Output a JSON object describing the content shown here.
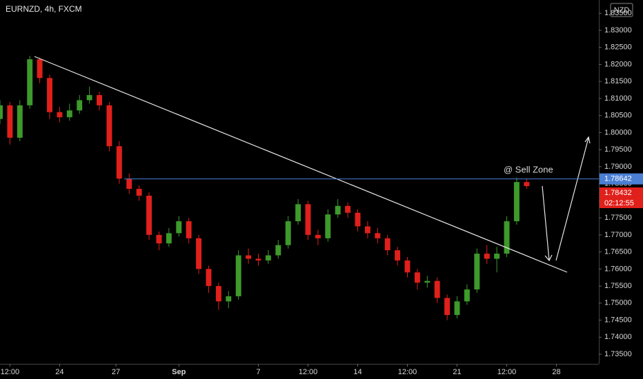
{
  "chart_data": {
    "type": "candlestick",
    "title": "EURNZD, 4h, FXCM",
    "currency": "NZD",
    "annotation": "@ Sell Zone",
    "countdown": "02:12:55",
    "up_color": "#3d9a2b",
    "down_color": "#e0201b",
    "level": 1.78642,
    "level_color": "#4a7fd4",
    "last_price": 1.78432,
    "x": [
      0,
      3,
      6,
      9,
      12,
      15,
      18,
      21,
      24,
      27,
      30,
      33,
      36,
      39,
      42,
      45,
      48,
      51,
      54,
      57,
      60,
      63,
      66,
      69,
      72,
      75,
      78,
      81,
      84,
      87,
      90,
      93,
      96,
      99,
      102,
      105,
      108,
      111,
      114,
      117,
      120,
      123,
      126,
      129,
      132,
      135,
      138,
      141,
      144,
      147,
      150,
      153,
      156,
      159
    ],
    "open": [
      1.804,
      1.808,
      1.7985,
      1.808,
      1.8215,
      1.816,
      1.806,
      1.8045,
      1.8065,
      1.8095,
      1.811,
      1.808,
      1.796,
      1.7865,
      1.7835,
      1.7815,
      1.77,
      1.7675,
      1.7705,
      1.774,
      1.769,
      1.76,
      1.755,
      1.7505,
      1.752,
      1.764,
      1.763,
      1.7625,
      1.764,
      1.767,
      1.774,
      1.779,
      1.77,
      1.769,
      1.776,
      1.7785,
      1.7765,
      1.7725,
      1.7705,
      1.769,
      1.7655,
      1.7625,
      1.759,
      1.756,
      1.7565,
      1.7515,
      1.7465,
      1.7505,
      1.754,
      1.7645,
      1.763,
      1.7645,
      1.774,
      1.7855
    ],
    "high": [
      1.8095,
      1.809,
      1.8095,
      1.8225,
      1.822,
      1.817,
      1.8075,
      1.8085,
      1.811,
      1.8135,
      1.812,
      1.809,
      1.7975,
      1.788,
      1.7845,
      1.7825,
      1.771,
      1.772,
      1.7755,
      1.775,
      1.77,
      1.761,
      1.756,
      1.7535,
      1.7655,
      1.766,
      1.7645,
      1.7655,
      1.7685,
      1.7755,
      1.7805,
      1.78,
      1.7715,
      1.7775,
      1.7805,
      1.7795,
      1.7775,
      1.774,
      1.772,
      1.77,
      1.7665,
      1.7635,
      1.76,
      1.758,
      1.7575,
      1.7525,
      1.752,
      1.7555,
      1.766,
      1.767,
      1.7665,
      1.7755,
      1.7868,
      1.7866
    ],
    "low": [
      1.8025,
      1.7965,
      1.7975,
      1.807,
      1.8145,
      1.804,
      1.803,
      1.8035,
      1.8055,
      1.8085,
      1.8065,
      1.7945,
      1.785,
      1.782,
      1.78,
      1.7685,
      1.7655,
      1.7665,
      1.7695,
      1.7675,
      1.7585,
      1.753,
      1.748,
      1.7485,
      1.751,
      1.7615,
      1.761,
      1.7615,
      1.763,
      1.766,
      1.773,
      1.7685,
      1.767,
      1.768,
      1.775,
      1.775,
      1.771,
      1.769,
      1.7675,
      1.764,
      1.761,
      1.7575,
      1.754,
      1.7545,
      1.75,
      1.745,
      1.7455,
      1.7495,
      1.753,
      1.7615,
      1.759,
      1.7635,
      1.773,
      1.7835
    ],
    "close": [
      1.808,
      1.7985,
      1.808,
      1.8215,
      1.816,
      1.806,
      1.8045,
      1.8065,
      1.8095,
      1.811,
      1.808,
      1.796,
      1.7865,
      1.7835,
      1.7815,
      1.77,
      1.7675,
      1.7705,
      1.774,
      1.769,
      1.76,
      1.755,
      1.7505,
      1.752,
      1.764,
      1.763,
      1.7625,
      1.764,
      1.767,
      1.774,
      1.779,
      1.77,
      1.769,
      1.776,
      1.7785,
      1.7765,
      1.7725,
      1.7705,
      1.769,
      1.7655,
      1.7625,
      1.759,
      1.756,
      1.7565,
      1.7515,
      1.7465,
      1.7505,
      1.754,
      1.7645,
      1.763,
      1.7645,
      1.774,
      1.7855,
      1.7843
    ],
    "xlim": [
      0,
      180.8
    ],
    "xticks": [
      {
        "value": 3,
        "label": "12:00"
      },
      {
        "value": 18,
        "label": "24"
      },
      {
        "value": 35,
        "label": "27"
      },
      {
        "value": 54,
        "label": "Sep"
      },
      {
        "value": 78,
        "label": "7"
      },
      {
        "value": 93,
        "label": "12:00"
      },
      {
        "value": 108,
        "label": "14"
      },
      {
        "value": 123,
        "label": "12:00"
      },
      {
        "value": 138,
        "label": "21"
      },
      {
        "value": 153,
        "label": "12:00"
      },
      {
        "value": 168,
        "label": "28"
      }
    ],
    "ylim": [
      1.73218,
      1.83889
    ],
    "yticks": [
      {
        "value": 1.735,
        "label": "1.73500"
      },
      {
        "value": 1.74,
        "label": "1.74000"
      },
      {
        "value": 1.745,
        "label": "1.74500"
      },
      {
        "value": 1.75,
        "label": "1.75000"
      },
      {
        "value": 1.755,
        "label": "1.75500"
      },
      {
        "value": 1.76,
        "label": "1.76000"
      },
      {
        "value": 1.765,
        "label": "1.76500"
      },
      {
        "value": 1.77,
        "label": "1.77000"
      },
      {
        "value": 1.775,
        "label": "1.77500"
      },
      {
        "value": 1.78,
        "label": "1.78000"
      },
      {
        "value": 1.785,
        "label": "1.78500"
      },
      {
        "value": 1.79,
        "label": "1.79000"
      },
      {
        "value": 1.795,
        "label": "1.79500"
      },
      {
        "value": 1.8,
        "label": "1.80000"
      },
      {
        "value": 1.805,
        "label": "1.80500"
      },
      {
        "value": 1.81,
        "label": "1.81000"
      },
      {
        "value": 1.815,
        "label": "1.81500"
      },
      {
        "value": 1.82,
        "label": "1.82000"
      },
      {
        "value": 1.825,
        "label": "1.82500"
      },
      {
        "value": 1.83,
        "label": "1.83000"
      },
      {
        "value": 1.835,
        "label": "1.83500"
      }
    ]
  }
}
